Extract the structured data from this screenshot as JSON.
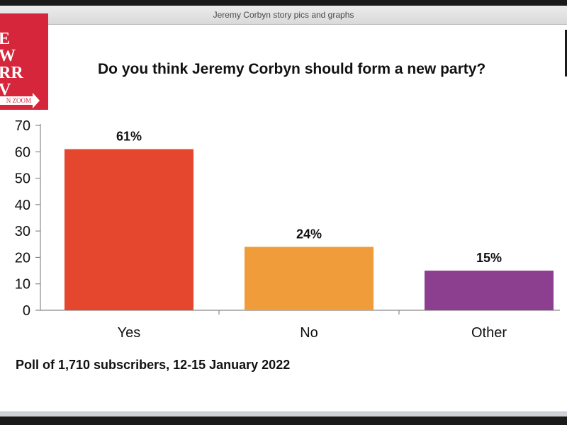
{
  "window": {
    "title": "Jeremy Corbyn story pics and graphs"
  },
  "logo": {
    "lines": [
      "E",
      "W",
      "RR",
      "V"
    ],
    "band": "N ZOOM",
    "colors": {
      "background": "#d5263b",
      "text": "#ffffff"
    }
  },
  "chart_data": {
    "type": "bar",
    "title": "Do you think Jeremy Corbyn should form a new party?",
    "categories": [
      "Yes",
      "No",
      "Other"
    ],
    "values": [
      61,
      24,
      15
    ],
    "data_labels": [
      "61%",
      "24%",
      "15%"
    ],
    "colors": [
      "#e5472e",
      "#f09c3a",
      "#8c3f8f"
    ],
    "yticks": [
      0,
      10,
      20,
      30,
      40,
      50,
      60,
      70
    ],
    "ylim": [
      0,
      70
    ],
    "xlabel": "",
    "ylabel": "",
    "grid": false,
    "legend": "none"
  },
  "footnote": "Poll of 1,710 subscribers, 12-15 January 2022"
}
